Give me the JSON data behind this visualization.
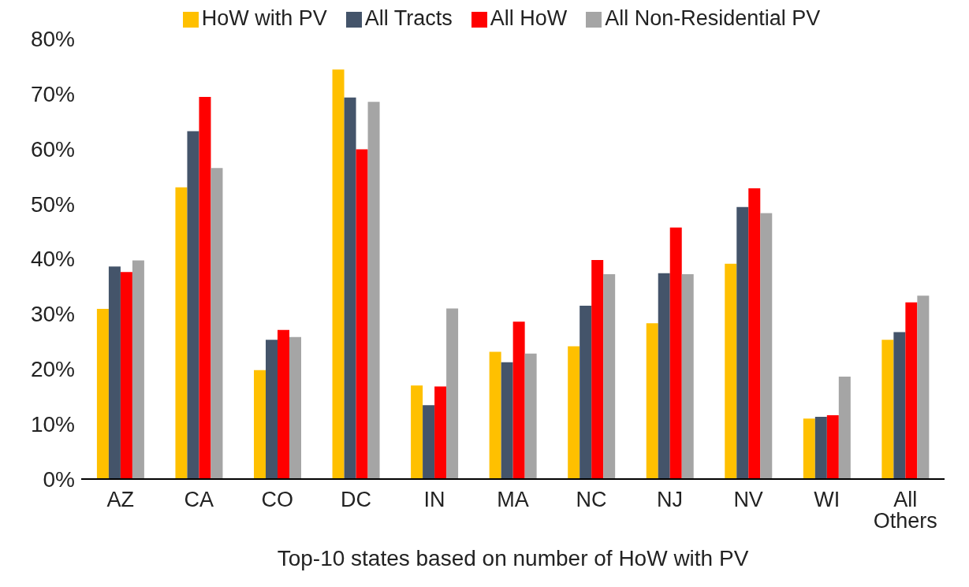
{
  "chart_data": {
    "type": "bar",
    "xlabel": "Top-10 states based on number of HoW with PV",
    "categories": [
      "AZ",
      "CA",
      "CO",
      "DC",
      "IN",
      "MA",
      "NC",
      "NJ",
      "NV",
      "WI",
      "All Others"
    ],
    "series": [
      {
        "name": "HoW with PV",
        "color": "#ffc000",
        "values": [
          30.9,
          53.0,
          19.8,
          74.4,
          17.0,
          23.1,
          24.1,
          28.3,
          39.1,
          11.0,
          25.3
        ]
      },
      {
        "name": "All Tracts",
        "color": "#44546a",
        "values": [
          38.6,
          63.2,
          25.3,
          69.3,
          13.4,
          21.2,
          31.5,
          37.4,
          49.4,
          11.3,
          26.7
        ]
      },
      {
        "name": "All HoW",
        "color": "#ff0000",
        "values": [
          37.6,
          69.4,
          27.1,
          59.9,
          16.8,
          28.6,
          39.8,
          45.7,
          52.8,
          11.6,
          32.1
        ]
      },
      {
        "name": "All Non-Residential PV",
        "color": "#a5a5a5",
        "values": [
          39.7,
          56.5,
          25.8,
          68.5,
          31.0,
          22.8,
          37.2,
          37.2,
          48.3,
          18.6,
          33.3
        ]
      }
    ],
    "ylim": [
      0,
      80
    ],
    "yticks": [
      {
        "value": 0,
        "label": "0%"
      },
      {
        "value": 10,
        "label": "10%"
      },
      {
        "value": 20,
        "label": "20%"
      },
      {
        "value": 30,
        "label": "30%"
      },
      {
        "value": 40,
        "label": "40%"
      },
      {
        "value": 50,
        "label": "50%"
      },
      {
        "value": 60,
        "label": "60%"
      },
      {
        "value": 70,
        "label": "70%"
      },
      {
        "value": 80,
        "label": "80%"
      }
    ],
    "grid": false,
    "legend": "top"
  }
}
